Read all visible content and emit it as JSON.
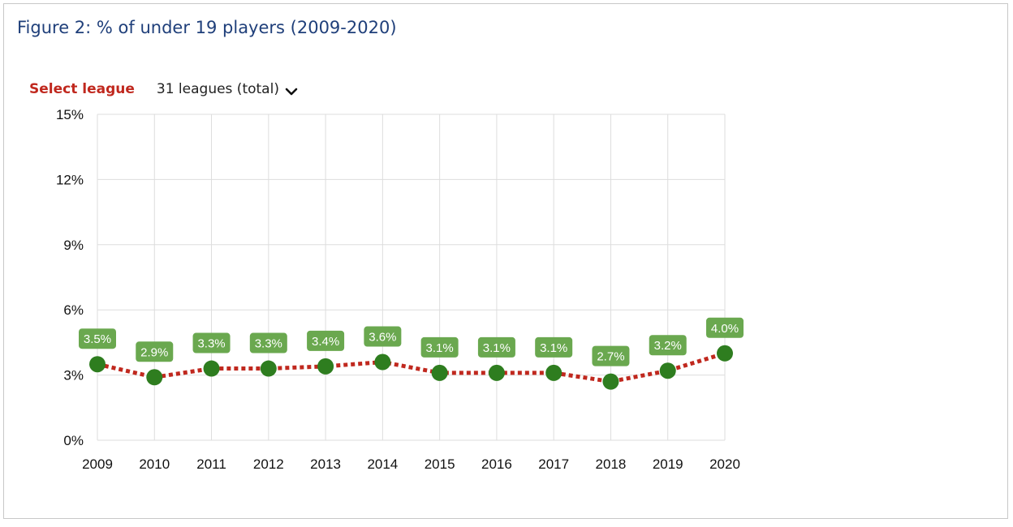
{
  "title": "Figure 2: % of under 19 players (2009-2020)",
  "selector": {
    "label": "Select league",
    "value": "31 leagues (total)",
    "icon": "chevron-down-icon"
  },
  "colors": {
    "title": "#1f3f7a",
    "select_label": "#c0281e",
    "line": "#c0281e",
    "marker": "#2e7d1f",
    "data_label_bg": "#6aa84f",
    "grid": "#dddddd"
  },
  "chart_data": {
    "type": "line",
    "categories": [
      "2009",
      "2010",
      "2011",
      "2012",
      "2013",
      "2014",
      "2015",
      "2016",
      "2017",
      "2018",
      "2019",
      "2020"
    ],
    "series": [
      {
        "values": [
          3.5,
          2.9,
          3.3,
          3.3,
          3.4,
          3.6,
          3.1,
          3.1,
          3.1,
          2.7,
          3.2,
          4.0
        ]
      }
    ],
    "data_labels": [
      "3.5%",
      "2.9%",
      "3.3%",
      "3.3%",
      "3.4%",
      "3.6%",
      "3.1%",
      "3.1%",
      "3.1%",
      "2.7%",
      "3.2%",
      "4.0%"
    ],
    "ylim": [
      0,
      15
    ],
    "y_ticks": [
      0,
      3,
      6,
      9,
      12,
      15
    ],
    "y_tick_labels": [
      "0%",
      "3%",
      "6%",
      "9%",
      "12%",
      "15%"
    ],
    "line_style": "dotted",
    "grid": true
  }
}
